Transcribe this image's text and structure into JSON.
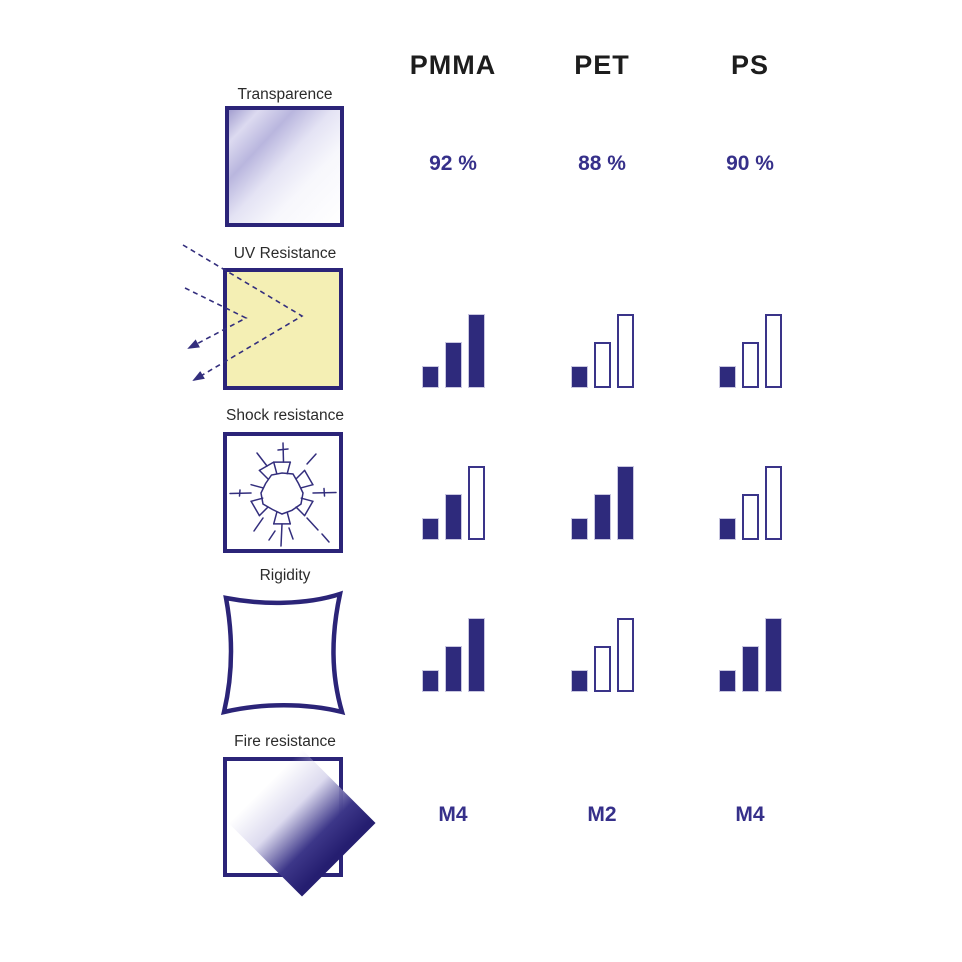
{
  "columns": [
    "PMMA",
    "PET",
    "PS"
  ],
  "rows": [
    {
      "label": "Transparence",
      "type": "value",
      "values": [
        "92 %",
        "88 %",
        "90 %"
      ],
      "icon": "transparent-sheet-icon"
    },
    {
      "label": "UV Resistance",
      "type": "rating",
      "ratings": [
        3,
        1,
        1
      ],
      "icon": "uv-rays-reflection-icon"
    },
    {
      "label": "Shock resistance",
      "type": "rating",
      "ratings": [
        2,
        3,
        1
      ],
      "icon": "shattered-glass-icon"
    },
    {
      "label": "Rigidity",
      "type": "rating",
      "ratings": [
        3,
        1,
        3
      ],
      "icon": "flexed-sheet-icon"
    },
    {
      "label": "Fire resistance",
      "type": "value",
      "values": [
        "M4",
        "M2",
        "M4"
      ],
      "icon": "fire-rated-sheet-icon"
    }
  ],
  "rating_scale": {
    "max": 3,
    "style": "ascending-bars",
    "filled_bars_mean": "performance level"
  },
  "colors": {
    "navy_border": "#2b2478",
    "bar_fill": "#2e2a7c",
    "value_text": "#36308a",
    "header_text": "#1d1d1d",
    "uv_yellow": "#f4efb4"
  },
  "chart_data": {
    "type": "table",
    "columns": [
      "PMMA",
      "PET",
      "PS"
    ],
    "rows": [
      {
        "property": "Transparence",
        "values": [
          "92 %",
          "88 %",
          "90 %"
        ]
      },
      {
        "property": "UV Resistance",
        "rating_out_of_3": [
          3,
          1,
          1
        ]
      },
      {
        "property": "Shock resistance",
        "rating_out_of_3": [
          2,
          3,
          1
        ]
      },
      {
        "property": "Rigidity",
        "rating_out_of_3": [
          3,
          1,
          3
        ]
      },
      {
        "property": "Fire resistance",
        "values": [
          "M4",
          "M2",
          "M4"
        ]
      }
    ],
    "legend_position": "none",
    "grid": false
  }
}
